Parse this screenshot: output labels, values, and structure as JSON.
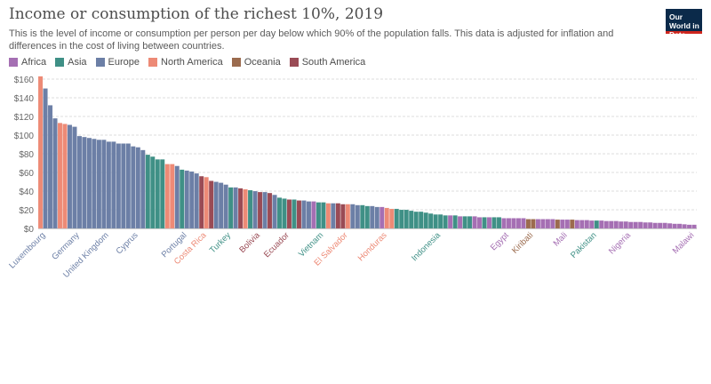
{
  "header": {
    "title": "Income or consumption of the richest 10%, 2019",
    "subtitle": "This is the level of income or consumption per person per day below which 90% of the population falls. This data is adjusted for inflation and differences in the cost of living between countries.",
    "logo": "Our World in Data"
  },
  "legend": [
    {
      "label": "Africa",
      "color": "#a56fb3"
    },
    {
      "label": "Asia",
      "color": "#3f9086"
    },
    {
      "label": "Europe",
      "color": "#6c7fa6"
    },
    {
      "label": "North America",
      "color": "#ed8a76"
    },
    {
      "label": "Oceania",
      "color": "#9b6b4e"
    },
    {
      "label": "South America",
      "color": "#9a4b55"
    }
  ],
  "chart_data": {
    "type": "bar",
    "ylim": [
      0,
      160
    ],
    "yticks": [
      0,
      20,
      40,
      60,
      80,
      100,
      120,
      140,
      160
    ],
    "ytick_labels": [
      "$0",
      "$20",
      "$40",
      "$60",
      "$80",
      "$100",
      "$120",
      "$140",
      "$160"
    ],
    "grid": true,
    "legend_position": "top-left",
    "bars": [
      {
        "v": 163,
        "r": "North America"
      },
      {
        "v": 150,
        "r": "Europe",
        "label": "Luxembourg"
      },
      {
        "v": 132,
        "r": "Europe"
      },
      {
        "v": 118,
        "r": "Europe"
      },
      {
        "v": 113,
        "r": "North America"
      },
      {
        "v": 112,
        "r": "North America"
      },
      {
        "v": 111,
        "r": "Europe"
      },
      {
        "v": 109,
        "r": "Europe"
      },
      {
        "v": 99,
        "r": "Europe",
        "label": "Germany"
      },
      {
        "v": 98,
        "r": "Europe"
      },
      {
        "v": 97,
        "r": "Europe"
      },
      {
        "v": 96,
        "r": "Europe"
      },
      {
        "v": 95,
        "r": "Europe"
      },
      {
        "v": 95,
        "r": "Europe"
      },
      {
        "v": 93,
        "r": "Europe",
        "label": "United Kingdom"
      },
      {
        "v": 93,
        "r": "Europe"
      },
      {
        "v": 91,
        "r": "Europe"
      },
      {
        "v": 91,
        "r": "Europe"
      },
      {
        "v": 91,
        "r": "Europe"
      },
      {
        "v": 88,
        "r": "Europe"
      },
      {
        "v": 87,
        "r": "Europe",
        "label": "Cyprus"
      },
      {
        "v": 84,
        "r": "Europe"
      },
      {
        "v": 79,
        "r": "Asia"
      },
      {
        "v": 77,
        "r": "Asia"
      },
      {
        "v": 74,
        "r": "Asia"
      },
      {
        "v": 74,
        "r": "Asia"
      },
      {
        "v": 69,
        "r": "North America"
      },
      {
        "v": 69,
        "r": "North America"
      },
      {
        "v": 67,
        "r": "Europe"
      },
      {
        "v": 63,
        "r": "Asia"
      },
      {
        "v": 62,
        "r": "Europe",
        "label": "Portugal"
      },
      {
        "v": 61,
        "r": "Europe"
      },
      {
        "v": 59,
        "r": "Europe"
      },
      {
        "v": 56,
        "r": "South America"
      },
      {
        "v": 55,
        "r": "North America",
        "label": "Costa Rica"
      },
      {
        "v": 51,
        "r": "South America"
      },
      {
        "v": 50,
        "r": "Europe"
      },
      {
        "v": 49,
        "r": "Europe"
      },
      {
        "v": 47,
        "r": "Europe"
      },
      {
        "v": 44,
        "r": "Asia",
        "label": "Turkey"
      },
      {
        "v": 44,
        "r": "Europe"
      },
      {
        "v": 43,
        "r": "South America"
      },
      {
        "v": 42,
        "r": "North America"
      },
      {
        "v": 41,
        "r": "Asia"
      },
      {
        "v": 40,
        "r": "Europe"
      },
      {
        "v": 39,
        "r": "South America",
        "label": "Bolivia"
      },
      {
        "v": 39,
        "r": "Europe"
      },
      {
        "v": 38,
        "r": "South America"
      },
      {
        "v": 36,
        "r": "Europe"
      },
      {
        "v": 33,
        "r": "Asia"
      },
      {
        "v": 32,
        "r": "Asia"
      },
      {
        "v": 31,
        "r": "South America",
        "label": "Ecuador"
      },
      {
        "v": 31,
        "r": "Asia"
      },
      {
        "v": 30,
        "r": "South America"
      },
      {
        "v": 30,
        "r": "Europe"
      },
      {
        "v": 29,
        "r": "Europe"
      },
      {
        "v": 29,
        "r": "Africa"
      },
      {
        "v": 28,
        "r": "Asia"
      },
      {
        "v": 28,
        "r": "Asia",
        "label": "Vietnam"
      },
      {
        "v": 27,
        "r": "North America"
      },
      {
        "v": 27,
        "r": "Europe"
      },
      {
        "v": 27,
        "r": "South America"
      },
      {
        "v": 26,
        "r": "South America"
      },
      {
        "v": 26,
        "r": "North America",
        "label": "El Salvador"
      },
      {
        "v": 26,
        "r": "Europe"
      },
      {
        "v": 25,
        "r": "Europe"
      },
      {
        "v": 25,
        "r": "Asia"
      },
      {
        "v": 24,
        "r": "Asia"
      },
      {
        "v": 24,
        "r": "Europe"
      },
      {
        "v": 23,
        "r": "Europe"
      },
      {
        "v": 23,
        "r": "Africa"
      },
      {
        "v": 22,
        "r": "North America",
        "label": "Honduras"
      },
      {
        "v": 21,
        "r": "North America"
      },
      {
        "v": 21,
        "r": "Asia"
      },
      {
        "v": 20,
        "r": "Asia"
      },
      {
        "v": 20,
        "r": "Asia"
      },
      {
        "v": 19,
        "r": "Asia"
      },
      {
        "v": 18,
        "r": "Asia"
      },
      {
        "v": 18,
        "r": "Asia"
      },
      {
        "v": 17,
        "r": "Asia"
      },
      {
        "v": 16,
        "r": "Asia"
      },
      {
        "v": 15,
        "r": "Asia"
      },
      {
        "v": 15,
        "r": "Asia",
        "label": "Indonesia"
      },
      {
        "v": 14,
        "r": "Asia"
      },
      {
        "v": 14,
        "r": "Africa"
      },
      {
        "v": 14,
        "r": "Asia"
      },
      {
        "v": 13,
        "r": "Africa"
      },
      {
        "v": 13,
        "r": "Asia"
      },
      {
        "v": 13,
        "r": "Asia"
      },
      {
        "v": 13,
        "r": "Africa"
      },
      {
        "v": 12,
        "r": "Africa"
      },
      {
        "v": 12,
        "r": "Asia"
      },
      {
        "v": 12,
        "r": "Africa"
      },
      {
        "v": 12,
        "r": "Asia"
      },
      {
        "v": 12,
        "r": "Asia"
      },
      {
        "v": 11,
        "r": "Africa"
      },
      {
        "v": 11,
        "r": "Africa",
        "label": "Egypt"
      },
      {
        "v": 11,
        "r": "Africa"
      },
      {
        "v": 11,
        "r": "Africa"
      },
      {
        "v": 11,
        "r": "Africa"
      },
      {
        "v": 10,
        "r": "Oceania"
      },
      {
        "v": 10,
        "r": "Oceania",
        "label": "Kiribati"
      },
      {
        "v": 10,
        "r": "Africa"
      },
      {
        "v": 10,
        "r": "Africa"
      },
      {
        "v": 10,
        "r": "Africa"
      },
      {
        "v": 10,
        "r": "Africa"
      },
      {
        "v": 9.5,
        "r": "Oceania"
      },
      {
        "v": 9.5,
        "r": "Africa"
      },
      {
        "v": 9.5,
        "r": "Africa",
        "label": "Mali"
      },
      {
        "v": 9.5,
        "r": "Oceania"
      },
      {
        "v": 9,
        "r": "Africa"
      },
      {
        "v": 9,
        "r": "Africa"
      },
      {
        "v": 9,
        "r": "Africa"
      },
      {
        "v": 8.5,
        "r": "Africa"
      },
      {
        "v": 8.5,
        "r": "Asia",
        "label": "Pakistan"
      },
      {
        "v": 8.5,
        "r": "Africa"
      },
      {
        "v": 8,
        "r": "Africa"
      },
      {
        "v": 8,
        "r": "Africa"
      },
      {
        "v": 8,
        "r": "Africa"
      },
      {
        "v": 7.5,
        "r": "Africa"
      },
      {
        "v": 7.5,
        "r": "Africa"
      },
      {
        "v": 7,
        "r": "Africa",
        "label": "Nigeria"
      },
      {
        "v": 7,
        "r": "Africa"
      },
      {
        "v": 7,
        "r": "Africa"
      },
      {
        "v": 6.5,
        "r": "Africa"
      },
      {
        "v": 6.5,
        "r": "Africa"
      },
      {
        "v": 6,
        "r": "Africa"
      },
      {
        "v": 6,
        "r": "Africa"
      },
      {
        "v": 6,
        "r": "Africa"
      },
      {
        "v": 5.5,
        "r": "Africa"
      },
      {
        "v": 5,
        "r": "Africa"
      },
      {
        "v": 5,
        "r": "Africa"
      },
      {
        "v": 4.5,
        "r": "Africa"
      },
      {
        "v": 4,
        "r": "Africa"
      },
      {
        "v": 4,
        "r": "Africa",
        "label": "Malawi"
      }
    ]
  }
}
